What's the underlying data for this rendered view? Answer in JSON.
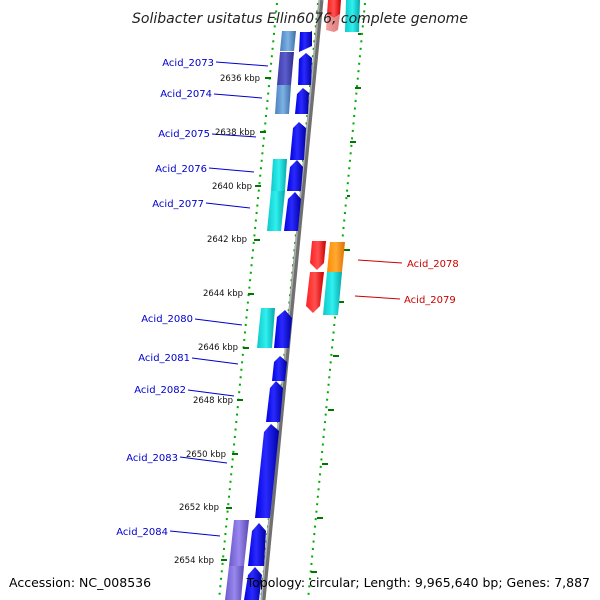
{
  "title": "Solibacter usitatus Ellin6076, complete genome",
  "footer": {
    "accession": "Accession: NC_008536",
    "topology": "Topology: circular; Length: 9,965,640 bp; Genes: 7,887"
  },
  "colors": {
    "forward_label": "#0000cc",
    "reverse_label": "#cc0000",
    "genome_line": "#808080",
    "tick": "#007700"
  },
  "kbp_labels": [
    "2636 kbp",
    "2638 kbp",
    "2640 kbp",
    "2642 kbp",
    "2644 kbp",
    "2646 kbp",
    "2648 kbp",
    "2650 kbp",
    "2652 kbp",
    "2654 kbp"
  ],
  "genes": {
    "forward": [
      "Acid_2073",
      "Acid_2074",
      "Acid_2075",
      "Acid_2076",
      "Acid_2077",
      "Acid_2080",
      "Acid_2081",
      "Acid_2082",
      "Acid_2083",
      "Acid_2084"
    ],
    "reverse": [
      "Acid_2078",
      "Acid_2079"
    ]
  }
}
